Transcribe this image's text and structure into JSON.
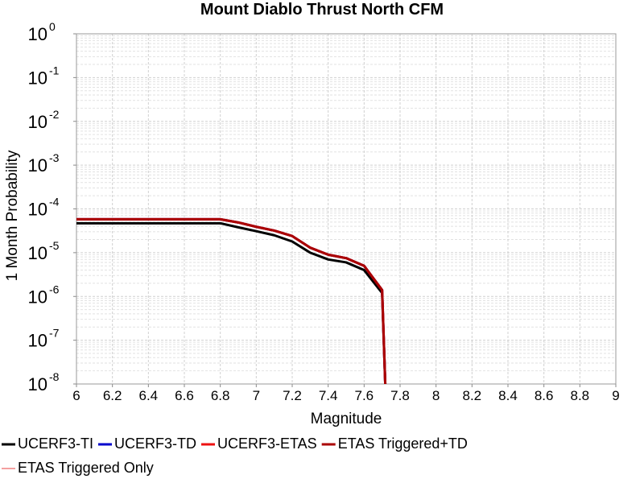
{
  "chart_data": {
    "type": "line",
    "title": "Mount Diablo Thrust North CFM",
    "x_label": "Magnitude",
    "y_label": "1 Month Probability",
    "log_y": true,
    "grid": true,
    "minor_grid": true,
    "legend": "bottom",
    "xlim": [
      6,
      9
    ],
    "ylim": [
      1e-08,
      1
    ],
    "xticks": [
      6,
      6.2,
      6.4,
      6.6,
      6.8,
      7,
      7.2,
      7.4,
      7.6,
      7.8,
      8,
      8.2,
      8.4,
      8.6,
      8.8,
      9
    ],
    "yticks": [
      {
        "value": 1,
        "label": "10",
        "exponent": "0"
      },
      {
        "value": 0.1,
        "label": "10",
        "exponent": "-1"
      },
      {
        "value": 0.01,
        "label": "10",
        "exponent": "-2"
      },
      {
        "value": 0.001,
        "label": "10",
        "exponent": "-3"
      },
      {
        "value": 0.0001,
        "label": "10",
        "exponent": "-4"
      },
      {
        "value": 1e-05,
        "label": "10",
        "exponent": "-5"
      },
      {
        "value": 1e-06,
        "label": "10",
        "exponent": "-6"
      },
      {
        "value": 1e-07,
        "label": "10",
        "exponent": "-7"
      },
      {
        "value": 1e-08,
        "label": "10",
        "exponent": "-8"
      }
    ],
    "x": [
      6.0,
      6.1,
      6.2,
      6.3,
      6.4,
      6.5,
      6.6,
      6.7,
      6.8,
      6.9,
      7.0,
      7.1,
      7.2,
      7.3,
      7.4,
      7.5,
      7.6,
      7.7,
      7.72
    ],
    "series": [
      {
        "name": "UCERF3-TI",
        "color": "#000000",
        "width": 3,
        "values": [
          4.7e-05,
          4.7e-05,
          4.7e-05,
          4.7e-05,
          4.7e-05,
          4.7e-05,
          4.7e-05,
          4.7e-05,
          4.7e-05,
          3.8e-05,
          3.1e-05,
          2.5e-05,
          1.8e-05,
          1e-05,
          7e-06,
          6e-06,
          4e-06,
          1.2e-06,
          5e-09
        ]
      },
      {
        "name": "UCERF3-TD",
        "color": "#0000cc",
        "width": 3,
        "values": [
          5.8e-05,
          5.8e-05,
          5.8e-05,
          5.8e-05,
          5.8e-05,
          5.8e-05,
          5.8e-05,
          5.8e-05,
          5.8e-05,
          4.9e-05,
          3.9e-05,
          3.2e-05,
          2.4e-05,
          1.3e-05,
          9e-06,
          7.5e-06,
          5e-06,
          1.4e-06,
          5e-09
        ]
      },
      {
        "name": "UCERF3-ETAS",
        "color": "#ee1111",
        "width": 3,
        "values": [
          5.8e-05,
          5.8e-05,
          5.8e-05,
          5.8e-05,
          5.8e-05,
          5.8e-05,
          5.8e-05,
          5.8e-05,
          5.8e-05,
          4.9e-05,
          3.9e-05,
          3.2e-05,
          2.4e-05,
          1.3e-05,
          9e-06,
          7.5e-06,
          5e-06,
          1.4e-06,
          5e-09
        ]
      },
      {
        "name": "ETAS Triggered+TD",
        "color": "#aa0000",
        "width": 3,
        "values": [
          5.8e-05,
          5.8e-05,
          5.8e-05,
          5.8e-05,
          5.8e-05,
          5.8e-05,
          5.8e-05,
          5.8e-05,
          5.8e-05,
          4.9e-05,
          3.9e-05,
          3.2e-05,
          2.4e-05,
          1.3e-05,
          9e-06,
          7.5e-06,
          5e-06,
          1.4e-06,
          5e-09
        ]
      },
      {
        "name": "ETAS Triggered Only",
        "color": "#f08080",
        "width": 1.5,
        "values": [
          null,
          null,
          null,
          null,
          null,
          null,
          null,
          null,
          null,
          null,
          null,
          null,
          null,
          null,
          null,
          null,
          null,
          null,
          null
        ]
      }
    ]
  }
}
